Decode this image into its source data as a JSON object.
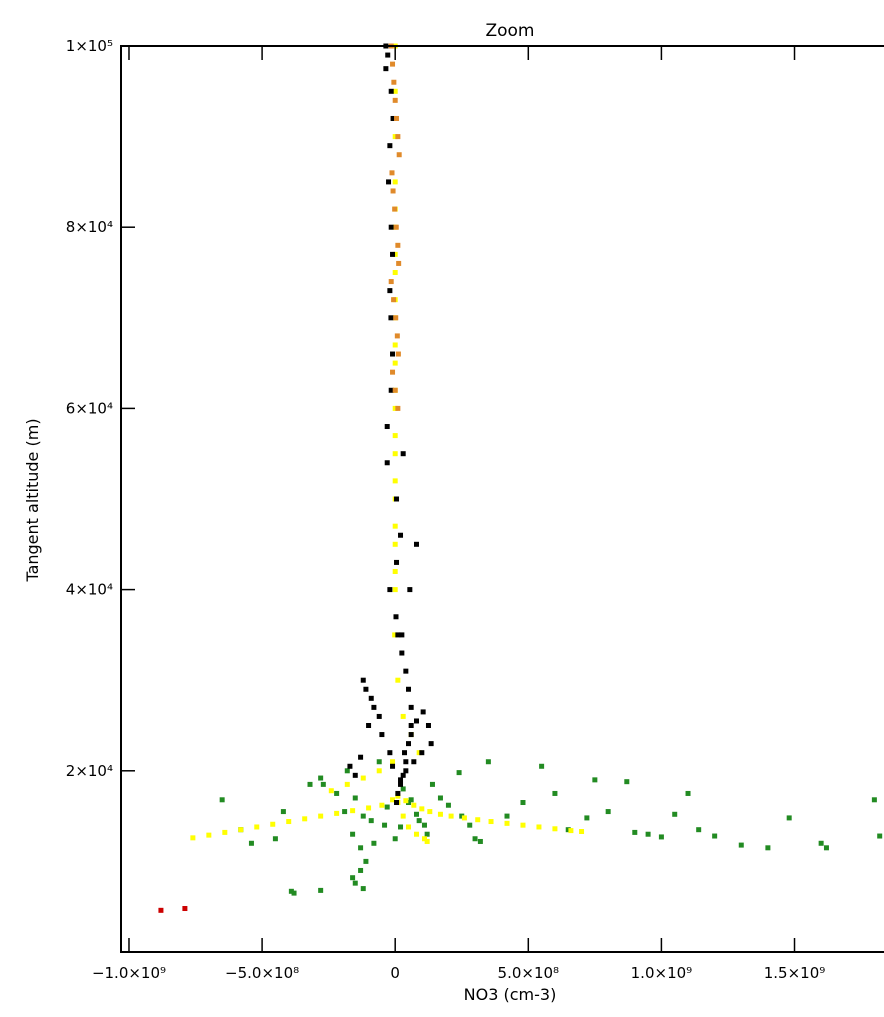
{
  "chart_data": {
    "type": "scatter",
    "title": "Zoom",
    "xlabel": "NO3 (cm-3)",
    "ylabel": "Tangent altitude (m)",
    "xlim": [
      -1030000000.0,
      1900000000.0
    ],
    "ylim": [
      0,
      100000
    ],
    "x_ticks": [
      {
        "value": -1000000000.0,
        "label": "−1.0×10⁹"
      },
      {
        "value": -500000000.0,
        "label": "−5.0×10⁸"
      },
      {
        "value": 0,
        "label": "0"
      },
      {
        "value": 500000000.0,
        "label": "5.0×10⁸"
      },
      {
        "value": 1000000000.0,
        "label": "1.0×10⁹"
      },
      {
        "value": 1500000000.0,
        "label": "1.5×10⁹"
      }
    ],
    "y_ticks": [
      {
        "value": 20000,
        "label": "2×10⁴"
      },
      {
        "value": 40000,
        "label": "4×10⁴"
      },
      {
        "value": 60000,
        "label": "6×10⁴"
      },
      {
        "value": 80000,
        "label": "8×10⁴"
      },
      {
        "value": 100000,
        "label": "1×10⁵"
      }
    ],
    "grid": false,
    "series": [
      {
        "color": "#228b22",
        "x": [
          -650000000.0,
          -420000000.0,
          -380000000.0,
          -280000000.0,
          -270000000.0,
          -180000000.0,
          -150000000.0,
          -120000000.0,
          -90000000.0,
          -60000000.0,
          -30000000.0,
          20000000.0,
          50000000.0,
          80000000.0,
          110000000.0,
          140000000.0,
          170000000.0,
          200000000.0,
          250000000.0,
          300000000.0,
          350000000.0,
          420000000.0,
          480000000.0,
          550000000.0,
          600000000.0,
          650000000.0,
          720000000.0,
          750000000.0,
          800000000.0,
          870000000.0,
          900000000.0,
          950000000.0,
          1000000000.0,
          1050000000.0,
          1100000000.0,
          1140000000.0,
          1200000000.0,
          1300000000.0,
          1400000000.0,
          1480000000.0,
          1600000000.0,
          1620000000.0,
          1800000000.0,
          1820000000.0,
          -390000000.0,
          -280000000.0,
          -190000000.0,
          -160000000.0,
          -130000000.0,
          -110000000.0,
          -130000000.0,
          -160000000.0,
          -150000000.0,
          -120000000.0,
          -80000000.0,
          -40000000.0,
          0,
          30000000.0,
          60000000.0,
          90000000.0,
          120000000.0,
          -220000000.0,
          -320000000.0,
          -450000000.0,
          -540000000.0,
          -580000000.0,
          320000000.0,
          280000000.0,
          240000000.0
        ],
        "y": [
          16800,
          15500,
          6500,
          19200,
          18500,
          20000,
          17000,
          15000,
          14500,
          21000,
          16000,
          13800,
          16500,
          15200,
          14000,
          18500,
          17000,
          16200,
          15000,
          12500,
          21000,
          15000,
          16500,
          20500,
          17500,
          13500,
          14800,
          19000,
          15500,
          18800,
          13200,
          13000,
          12700,
          15200,
          17500,
          13500,
          12800,
          11800,
          11500,
          14800,
          12000,
          11500,
          16800,
          12800,
          6700,
          6800,
          15500,
          13000,
          11500,
          10000,
          9000,
          8200,
          7600,
          7000,
          12000,
          14000,
          12500,
          18000,
          16800,
          14500,
          13000,
          17500,
          18500,
          12500,
          12000,
          13500,
          12200,
          14000,
          19800
        ]
      },
      {
        "color": "#ffff00",
        "x": [
          -760000000.0,
          -700000000.0,
          -640000000.0,
          -580000000.0,
          -520000000.0,
          -460000000.0,
          -400000000.0,
          -340000000.0,
          -280000000.0,
          -220000000.0,
          -160000000.0,
          -100000000.0,
          -50000000.0,
          -10000000.0,
          10000000.0,
          40000000.0,
          70000000.0,
          100000000.0,
          130000000.0,
          170000000.0,
          210000000.0,
          260000000.0,
          310000000.0,
          360000000.0,
          420000000.0,
          480000000.0,
          540000000.0,
          600000000.0,
          660000000.0,
          700000000.0,
          -240000000.0,
          -180000000.0,
          -120000000.0,
          -60000000.0,
          -10000000.0,
          10000000.0,
          30000000.0,
          50000000.0,
          80000000.0,
          110000000.0,
          120000000.0,
          90000000.0,
          60000000.0,
          30000000.0,
          10000000.0,
          -2000000.0,
          0,
          0,
          0,
          0,
          0,
          0,
          0,
          0,
          0,
          0,
          0,
          0,
          0,
          0,
          0,
          0,
          0,
          0,
          0,
          0,
          0,
          0
        ],
        "y": [
          12600,
          12900,
          13200,
          13500,
          13800,
          14100,
          14400,
          14700,
          15000,
          15300,
          15600,
          15900,
          16200,
          16800,
          17200,
          16700,
          16200,
          15800,
          15500,
          15200,
          15000,
          14800,
          14600,
          14400,
          14200,
          14000,
          13800,
          13600,
          13400,
          13300,
          17800,
          18500,
          19200,
          20000,
          21000,
          16500,
          15000,
          13800,
          13000,
          12500,
          12200,
          22000,
          24000,
          26000,
          30000,
          35000,
          40000,
          45000,
          50000,
          55000,
          60000,
          65000,
          70000,
          75000,
          80000,
          85000,
          90000,
          95000,
          100000,
          42000,
          47000,
          52000,
          57000,
          62000,
          67000,
          72000,
          77000,
          82000
        ]
      },
      {
        "color": "#000000",
        "x": [
          -35000000.0,
          -28000000.0,
          -35000000.0,
          -15000000.0,
          -8000000.0,
          -20000000.0,
          -25000000.0,
          -15000000.0,
          -10000000.0,
          -20000000.0,
          -16000000.0,
          -10000000.0,
          -15000000.0,
          -30000000.0,
          -30000000.0,
          5000000.0,
          20000000.0,
          5000000.0,
          -20000000.0,
          3000000.0,
          10000000.0,
          25000000.0,
          40000000.0,
          50000000.0,
          60000000.0,
          60000000.0,
          50000000.0,
          40000000.0,
          30000000.0,
          20000000.0,
          10000000.0,
          5000000.0,
          35000000.0,
          60000000.0,
          80000000.0,
          105000000.0,
          125000000.0,
          135000000.0,
          100000000.0,
          70000000.0,
          40000000.0,
          20000000.0,
          -10000000.0,
          -20000000.0,
          -50000000.0,
          -60000000.0,
          -150000000.0,
          -170000000.0,
          -130000000.0,
          -100000000.0,
          -80000000.0,
          -90000000.0,
          -110000000.0,
          -120000000.0,
          25000000.0,
          55000000.0,
          80000000.0,
          30000000.0
        ],
        "y": [
          100000,
          99000,
          97500,
          95000,
          92000,
          89000,
          85000,
          80000,
          77000,
          73000,
          70000,
          66000,
          62000,
          58000,
          54000,
          50000,
          46000,
          43000,
          40000,
          37000,
          35000,
          33000,
          31000,
          29000,
          27000,
          25000,
          23000,
          21000,
          19500,
          18500,
          17500,
          16500,
          22000,
          24000,
          25500,
          26500,
          25000,
          23000,
          22000,
          21000,
          20000,
          19000,
          20500,
          22000,
          24000,
          26000,
          19500,
          20500,
          21500,
          25000,
          27000,
          28000,
          29000,
          30000,
          35000,
          40000,
          45000,
          55000
        ]
      },
      {
        "color": "#e08a2a",
        "x": [
          -15000000.0,
          -10000000.0,
          -5000000.0,
          0,
          5000000.0,
          10000000.0,
          15000000.0,
          -12000000.0,
          -8000000.0,
          -2000000.0,
          4000000.0,
          10000000.0,
          13000000.0,
          -15000000.0,
          -6000000.0,
          2000000.0,
          8000000.0,
          12000000.0,
          -10000000.0,
          0,
          10000000.0
        ],
        "y": [
          100000,
          98000,
          96000,
          94000,
          92000,
          90000,
          88000,
          86000,
          84000,
          82000,
          80000,
          78000,
          76000,
          74000,
          72000,
          70000,
          68000,
          66000,
          64000,
          62000,
          60000
        ]
      },
      {
        "color": "#cc0000",
        "x": [
          -880000000.0,
          -790000000.0
        ],
        "y": [
          4600,
          4800
        ]
      }
    ]
  }
}
